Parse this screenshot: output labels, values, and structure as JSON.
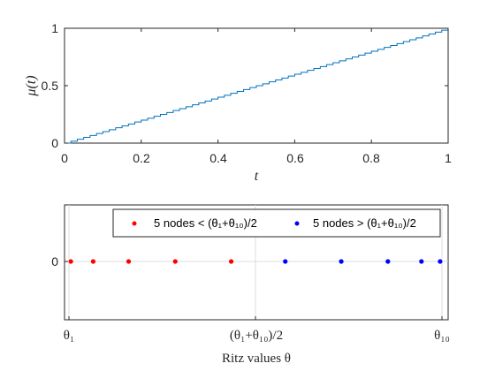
{
  "chart_data": [
    {
      "type": "line",
      "step": true,
      "ylabel": "μ(t)",
      "xlabel": "t",
      "xlim": [
        0,
        1
      ],
      "ylim": [
        0,
        1
      ],
      "xticks": [
        "0",
        "0.2",
        "0.4",
        "0.6",
        "0.8",
        "1"
      ],
      "yticks": [
        "0",
        "0.5",
        "1"
      ],
      "steps": 60,
      "color": "#0072BD",
      "grid": false
    },
    {
      "type": "scatter",
      "xlabel": "Ritz values θ",
      "xtick_labels": {
        "left": "θ₁",
        "mid": "(θ₁+θ₁₀)/2",
        "right": "θ₁₀"
      },
      "ytick": "0",
      "grid": true,
      "legend_position": "top-right",
      "series": [
        {
          "name": "5 nodes < (θ₁+θ₁₀)/2",
          "color": "#ff0000",
          "x": [
            0.005,
            0.065,
            0.16,
            0.285,
            0.435
          ],
          "y": [
            0,
            0,
            0,
            0,
            0
          ]
        },
        {
          "name": "5 nodes > (θ₁+θ₁₀)/2",
          "color": "#0000ff",
          "x": [
            0.58,
            0.73,
            0.855,
            0.945,
            0.995
          ],
          "y": [
            0,
            0,
            0,
            0,
            0
          ]
        }
      ]
    }
  ]
}
